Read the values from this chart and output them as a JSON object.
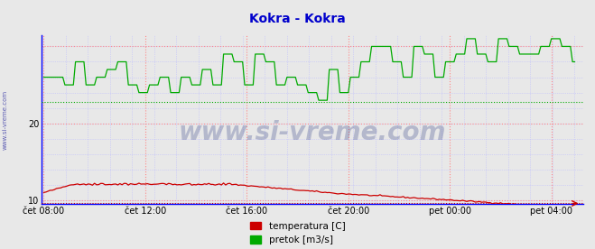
{
  "title": "Kokra - Kokra",
  "title_color": "#0000cc",
  "bg_color": "#e8e8e8",
  "plot_bg_color": "#e8e8e8",
  "xlabel": "",
  "ylabel": "",
  "ylim": [
    9.5,
    31.5
  ],
  "yticks": [
    10,
    20
  ],
  "xtick_labels": [
    "čet 08:00",
    "čet 12:00",
    "čet 16:00",
    "čet 20:00",
    "pet 00:00",
    "pet 04:00"
  ],
  "xtick_positions": [
    0,
    48,
    96,
    144,
    192,
    240
  ],
  "n_points": 252,
  "temp_color": "#cc0000",
  "flow_color": "#00aa00",
  "temp_min_line": 9.7,
  "flow_min_line": 22.8,
  "watermark": "www.si-vreme.com",
  "legend_labels": [
    "temperatura [C]",
    "pretok [m3/s]"
  ],
  "grid_major_color": "#ff8888",
  "grid_minor_color": "#bbbbff",
  "axis_left_color": "#0000ff",
  "axis_bottom_color": "#0000ff",
  "tick_label_color": "#000000",
  "left_label": "www.si-vreme.com",
  "left_label_color": "#4444aa",
  "watermark_color": "#1a2a7a",
  "watermark_alpha": 0.25
}
